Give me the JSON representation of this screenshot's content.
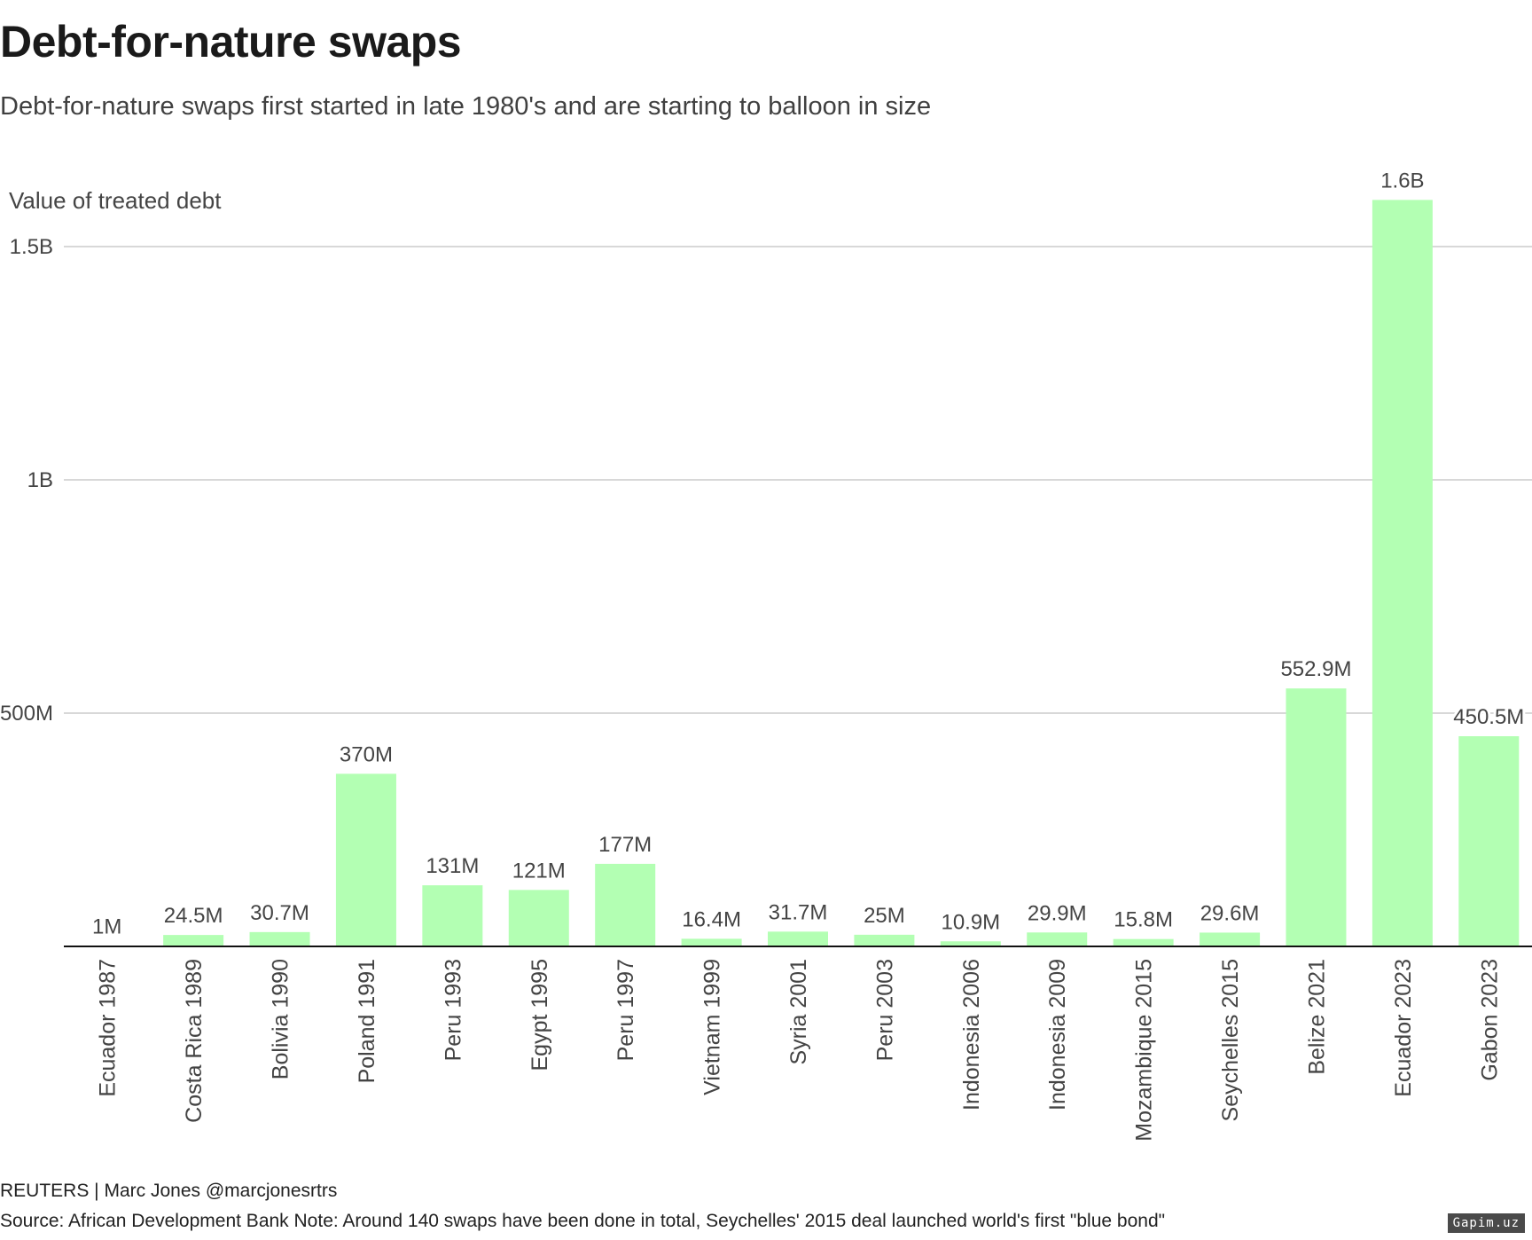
{
  "header": {
    "title": "Debt-for-nature swaps",
    "subtitle": "Debt-for-nature swaps first started in late 1980's and are starting to balloon in size"
  },
  "chart_data": {
    "type": "bar",
    "title": "Debt-for-nature swaps",
    "subtitle": "Debt-for-nature swaps first started in late 1980's and are starting to balloon in size",
    "ylabel": "Value of treated debt",
    "xlabel": "",
    "ylim": [
      0,
      1600000000
    ],
    "yticks": [
      {
        "value": 500000000,
        "label": "500M"
      },
      {
        "value": 1000000000,
        "label": "1B"
      },
      {
        "value": 1500000000,
        "label": "1.5B"
      }
    ],
    "grid": true,
    "bar_color": "#b3ffb3",
    "categories": [
      "Ecuador 1987",
      "Costa Rica 1989",
      "Bolivia 1990",
      "Poland 1991",
      "Peru 1993",
      "Egypt 1995",
      "Peru 1997",
      "Vietnam 1999",
      "Syria 2001",
      "Peru 2003",
      "Indonesia 2006",
      "Indonesia 2009",
      "Mozambique 2015",
      "Seychelles 2015",
      "Belize 2021",
      "Ecuador 2023",
      "Gabon 2023"
    ],
    "values": [
      1000000,
      24500000,
      30700000,
      370000000,
      131000000,
      121000000,
      177000000,
      16400000,
      31700000,
      25000000,
      10900000,
      29900000,
      15800000,
      29600000,
      552900000,
      1600000000,
      450500000
    ],
    "value_labels": [
      "1M",
      "24.5M",
      "30.7M",
      "370M",
      "131M",
      "121M",
      "177M",
      "16.4M",
      "31.7M",
      "25M",
      "10.9M",
      "29.9M",
      "15.8M",
      "29.6M",
      "552.9M",
      "1.6B",
      "450.5M"
    ]
  },
  "footer": {
    "credit": "REUTERS | Marc Jones @marcjonesrtrs",
    "source": "Source: African Development Bank Note: Around 140 swaps have been done in total, Seychelles' 2015 deal launched world's first \"blue bond\""
  },
  "watermark": "Gapim.uz"
}
